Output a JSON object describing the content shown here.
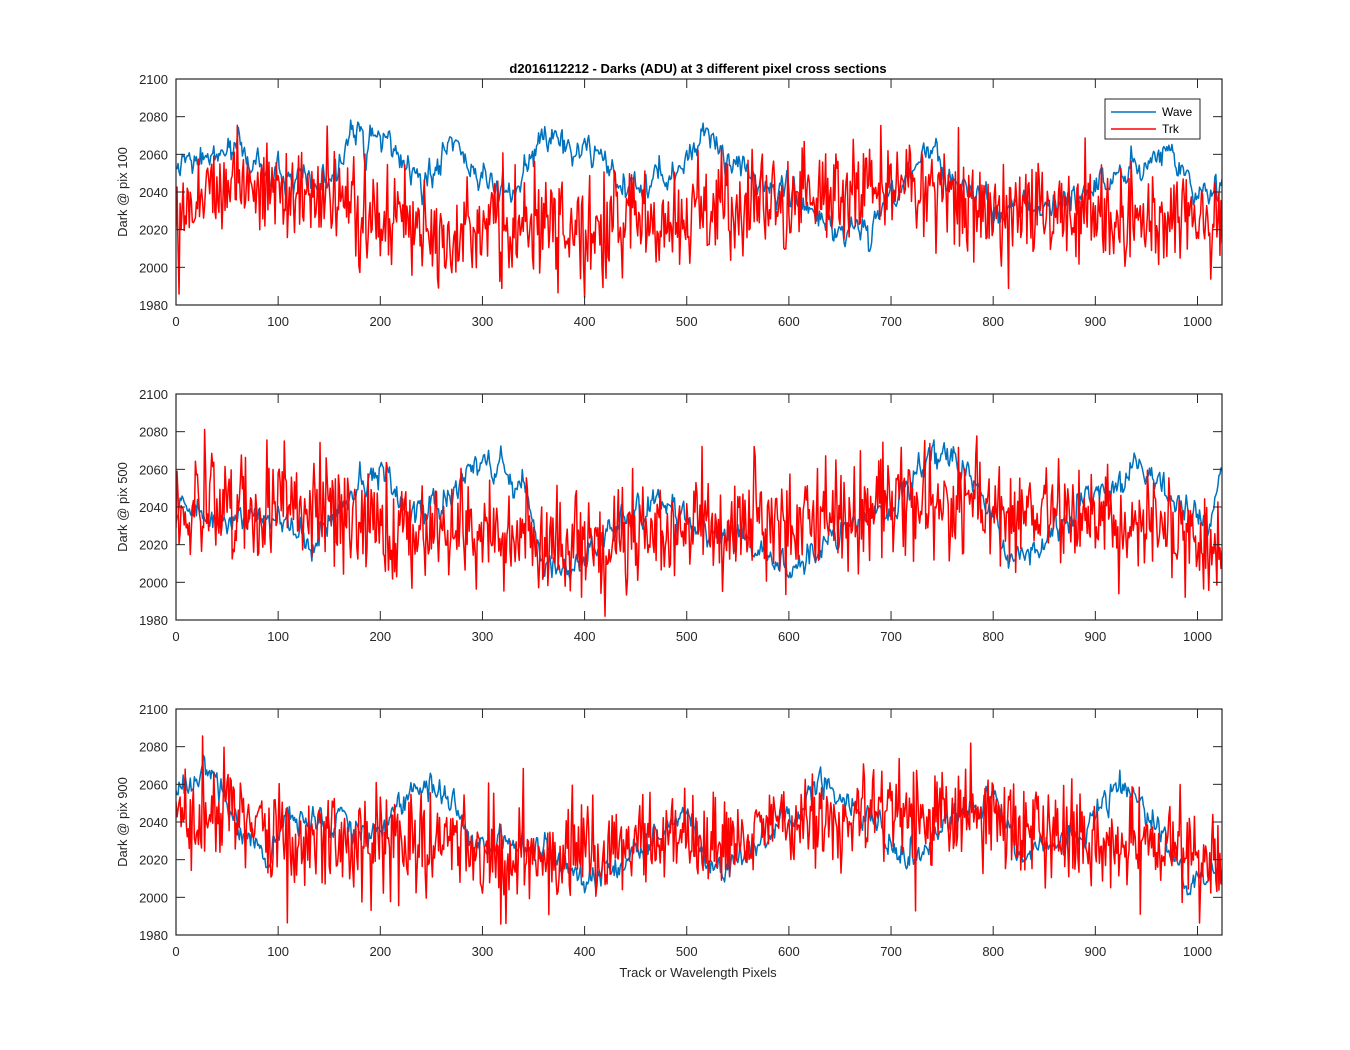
{
  "title": "d2016112212 - Darks (ADU) at 3 different pixel cross sections",
  "xlabel": "Track or Wavelength Pixels",
  "legend": {
    "position": "top-right",
    "entries": [
      "Wave",
      "Trk"
    ]
  },
  "colors": {
    "Wave": "#0072BD",
    "Trk": "#FF0000",
    "axis": "#262626"
  },
  "chart_data": [
    {
      "type": "line",
      "ylabel": "Dark @ pix 100",
      "xlim": [
        0,
        1024
      ],
      "ylim": [
        1980,
        2100
      ],
      "xticks": [
        0,
        100,
        200,
        300,
        400,
        500,
        600,
        700,
        800,
        900,
        1000
      ],
      "yticks": [
        1980,
        2000,
        2020,
        2040,
        2060,
        2080,
        2100
      ],
      "grid": false,
      "series": [
        {
          "name": "Wave",
          "knots": [
            [
              0,
              2052
            ],
            [
              60,
              2063
            ],
            [
              100,
              2047
            ],
            [
              150,
              2041
            ],
            [
              170,
              2070
            ],
            [
              210,
              2066
            ],
            [
              240,
              2040
            ],
            [
              270,
              2067
            ],
            [
              300,
              2045
            ],
            [
              330,
              2040
            ],
            [
              360,
              2068
            ],
            [
              400,
              2062
            ],
            [
              440,
              2041
            ],
            [
              480,
              2046
            ],
            [
              520,
              2072
            ],
            [
              560,
              2048
            ],
            [
              600,
              2040
            ],
            [
              640,
              2022
            ],
            [
              680,
              2018
            ],
            [
              700,
              2040
            ],
            [
              740,
              2063
            ],
            [
              760,
              2048
            ],
            [
              800,
              2030
            ],
            [
              850,
              2032
            ],
            [
              900,
              2042
            ],
            [
              950,
              2055
            ],
            [
              970,
              2062
            ],
            [
              1000,
              2040
            ],
            [
              1024,
              2040
            ]
          ],
          "noise": 3.5
        },
        {
          "name": "Trk",
          "knots": [
            [
              0,
              2030
            ],
            [
              50,
              2048
            ],
            [
              100,
              2040
            ],
            [
              150,
              2035
            ],
            [
              200,
              2025
            ],
            [
              300,
              2020
            ],
            [
              400,
              2020
            ],
            [
              500,
              2028
            ],
            [
              600,
              2035
            ],
            [
              650,
              2040
            ],
            [
              700,
              2045
            ],
            [
              750,
              2040
            ],
            [
              800,
              2032
            ],
            [
              900,
              2028
            ],
            [
              1024,
              2022
            ]
          ],
          "noise": 13
        }
      ]
    },
    {
      "type": "line",
      "ylabel": "Dark @ pix 500",
      "xlim": [
        0,
        1024
      ],
      "ylim": [
        1980,
        2100
      ],
      "xticks": [
        0,
        100,
        200,
        300,
        400,
        500,
        600,
        700,
        800,
        900,
        1000
      ],
      "yticks": [
        1980,
        2000,
        2020,
        2040,
        2060,
        2080,
        2100
      ],
      "grid": false,
      "series": [
        {
          "name": "Wave",
          "knots": [
            [
              0,
              2040
            ],
            [
              50,
              2032
            ],
            [
              100,
              2037
            ],
            [
              130,
              2020
            ],
            [
              150,
              2032
            ],
            [
              200,
              2058
            ],
            [
              240,
              2035
            ],
            [
              280,
              2050
            ],
            [
              300,
              2066
            ],
            [
              340,
              2050
            ],
            [
              360,
              2010
            ],
            [
              400,
              2008
            ],
            [
              430,
              2030
            ],
            [
              470,
              2045
            ],
            [
              500,
              2030
            ],
            [
              560,
              2025
            ],
            [
              600,
              2003
            ],
            [
              640,
              2025
            ],
            [
              700,
              2038
            ],
            [
              740,
              2068
            ],
            [
              780,
              2058
            ],
            [
              820,
              2010
            ],
            [
              860,
              2028
            ],
            [
              900,
              2045
            ],
            [
              940,
              2062
            ],
            [
              980,
              2040
            ],
            [
              1010,
              2030
            ],
            [
              1024,
              2062
            ]
          ],
          "noise": 3.5
        },
        {
          "name": "Trk",
          "knots": [
            [
              0,
              2035
            ],
            [
              60,
              2045
            ],
            [
              100,
              2045
            ],
            [
              200,
              2030
            ],
            [
              300,
              2025
            ],
            [
              400,
              2020
            ],
            [
              500,
              2030
            ],
            [
              600,
              2032
            ],
            [
              700,
              2045
            ],
            [
              800,
              2040
            ],
            [
              900,
              2035
            ],
            [
              1000,
              2025
            ],
            [
              1024,
              2010
            ]
          ],
          "noise": 14
        }
      ]
    },
    {
      "type": "line",
      "ylabel": "Dark @ pix 900",
      "xlim": [
        0,
        1024
      ],
      "ylim": [
        1980,
        2100
      ],
      "xticks": [
        0,
        100,
        200,
        300,
        400,
        500,
        600,
        700,
        800,
        900,
        1000
      ],
      "yticks": [
        1980,
        2000,
        2020,
        2040,
        2060,
        2080,
        2100
      ],
      "grid": false,
      "series": [
        {
          "name": "Wave",
          "knots": [
            [
              0,
              2055
            ],
            [
              30,
              2068
            ],
            [
              60,
              2040
            ],
            [
              90,
              2018
            ],
            [
              110,
              2045
            ],
            [
              150,
              2040
            ],
            [
              200,
              2035
            ],
            [
              230,
              2060
            ],
            [
              260,
              2058
            ],
            [
              290,
              2030
            ],
            [
              350,
              2025
            ],
            [
              400,
              2008
            ],
            [
              440,
              2020
            ],
            [
              500,
              2045
            ],
            [
              530,
              2008
            ],
            [
              560,
              2025
            ],
            [
              600,
              2040
            ],
            [
              630,
              2058
            ],
            [
              670,
              2045
            ],
            [
              700,
              2028
            ],
            [
              730,
              2020
            ],
            [
              760,
              2045
            ],
            [
              800,
              2055
            ],
            [
              830,
              2020
            ],
            [
              870,
              2030
            ],
            [
              910,
              2045
            ],
            [
              920,
              2062
            ],
            [
              960,
              2040
            ],
            [
              990,
              2005
            ],
            [
              1024,
              2018
            ]
          ],
          "noise": 3.5
        },
        {
          "name": "Trk",
          "knots": [
            [
              0,
              2035
            ],
            [
              50,
              2050
            ],
            [
              100,
              2030
            ],
            [
              200,
              2030
            ],
            [
              300,
              2025
            ],
            [
              400,
              2022
            ],
            [
              500,
              2030
            ],
            [
              600,
              2035
            ],
            [
              700,
              2045
            ],
            [
              800,
              2040
            ],
            [
              900,
              2030
            ],
            [
              1000,
              2022
            ],
            [
              1024,
              2015
            ]
          ],
          "noise": 13
        }
      ]
    }
  ]
}
